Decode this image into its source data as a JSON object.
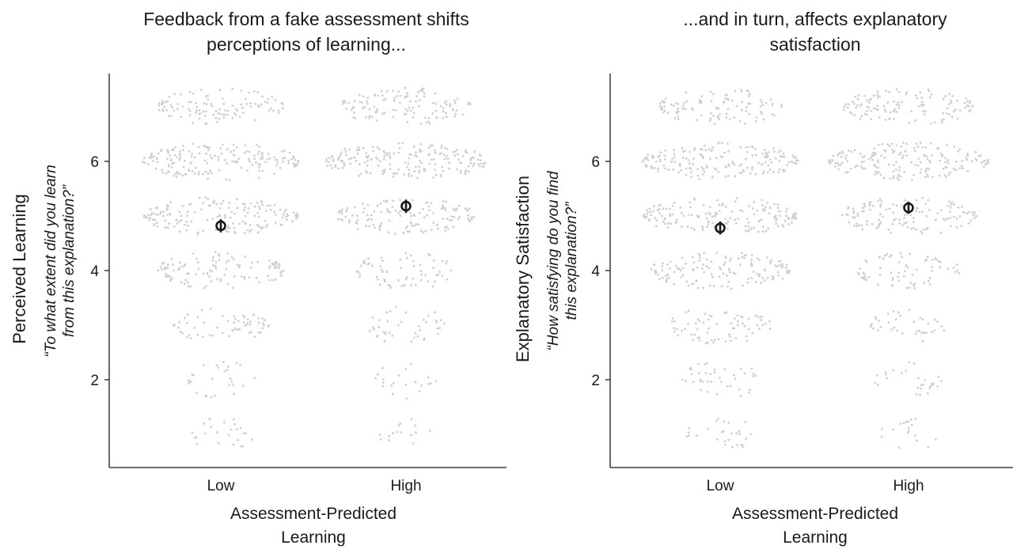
{
  "chart_data": [
    {
      "type": "scatter",
      "title": [
        "Feedback from a fake assessment shifts",
        "perceptions of learning..."
      ],
      "ylabel": "Perceived Learning",
      "ylabel_question": [
        "“To what extent did you learn",
        "from this explanation?”"
      ],
      "xlabel": [
        "Assessment-Predicted",
        "Learning"
      ],
      "categories": [
        "Low",
        "High"
      ],
      "yticks": [
        2,
        4,
        6
      ],
      "ylim": [
        0.6,
        7.6
      ],
      "response_levels": [
        1,
        2,
        3,
        4,
        5,
        6,
        7
      ],
      "counts": {
        "Low": [
          25,
          28,
          60,
          110,
          170,
          175,
          110
        ],
        "High": [
          15,
          22,
          40,
          65,
          135,
          190,
          120
        ]
      },
      "means": {
        "Low": 4.82,
        "High": 5.18
      },
      "errors": {
        "Low": 0.12,
        "High": 0.12
      },
      "grid": false,
      "legend": "none"
    },
    {
      "type": "scatter",
      "title": [
        "...and in turn, affects explanatory",
        "satisfaction"
      ],
      "ylabel": "Explanatory Satisfaction",
      "ylabel_question": [
        "“How satisfying do you find",
        "this explanation?”"
      ],
      "xlabel": [
        "Assessment-Predicted",
        "Learning"
      ],
      "categories": [
        "Low",
        "High"
      ],
      "yticks": [
        2,
        4,
        6
      ],
      "ylim": [
        0.6,
        7.6
      ],
      "response_levels": [
        1,
        2,
        3,
        4,
        5,
        6,
        7
      ],
      "counts": {
        "Low": [
          28,
          40,
          70,
          140,
          170,
          175,
          105
        ],
        "High": [
          18,
          28,
          38,
          70,
          130,
          185,
          120
        ]
      },
      "means": {
        "Low": 4.78,
        "High": 5.15
      },
      "errors": {
        "Low": 0.12,
        "High": 0.11
      },
      "grid": false,
      "legend": "none"
    }
  ],
  "colors": {
    "points": "#cfcfcf",
    "mean": "#1a1a1a",
    "axis": "#1a1a1a"
  }
}
